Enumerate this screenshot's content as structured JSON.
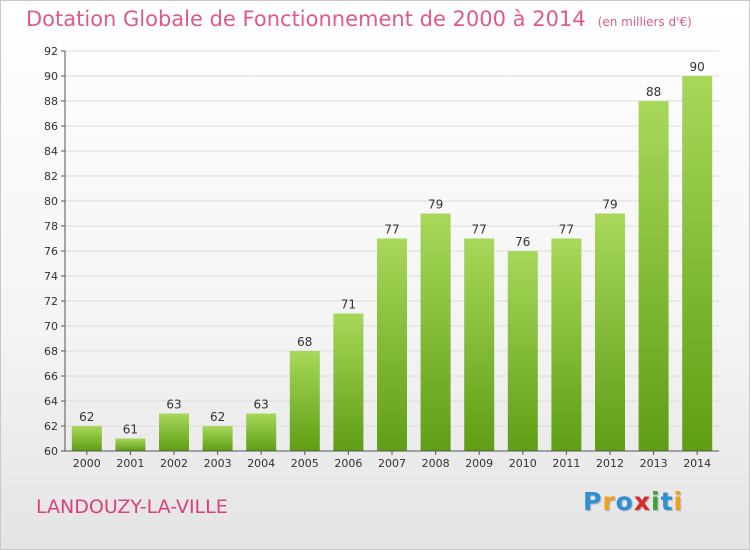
{
  "title": "Dotation Globale de Fonctionnement de 2000 à 2014",
  "unit_note": "(en milliers d'€)",
  "commune": "LANDOUZY-LA-VILLE",
  "logo": {
    "text": "Proxiti",
    "letters": [
      "P",
      "r",
      "o",
      "x",
      "i",
      "t",
      "i"
    ],
    "colors": [
      "#2f8fd6",
      "#f0a020",
      "#2f8fd6",
      "#d82a2a",
      "#3aa33a",
      "#2f8fd6",
      "#f0a020"
    ]
  },
  "colors": {
    "bar_top": "#a8d85a",
    "bar_bottom": "#5e9e14",
    "grid": "#dddddd",
    "axis": "#555555",
    "text": "#333333"
  },
  "chart_data": {
    "type": "bar",
    "categories": [
      "2000",
      "2001",
      "2002",
      "2003",
      "2004",
      "2005",
      "2006",
      "2007",
      "2008",
      "2009",
      "2010",
      "2011",
      "2012",
      "2013",
      "2014"
    ],
    "values": [
      62,
      61,
      63,
      62,
      63,
      68,
      71,
      77,
      79,
      77,
      76,
      77,
      79,
      88,
      90
    ],
    "ylim": [
      60,
      92
    ],
    "yticks": [
      60,
      62,
      64,
      66,
      68,
      70,
      72,
      74,
      76,
      78,
      80,
      82,
      84,
      86,
      88,
      90,
      92
    ],
    "grid": true,
    "data_labels": true
  }
}
